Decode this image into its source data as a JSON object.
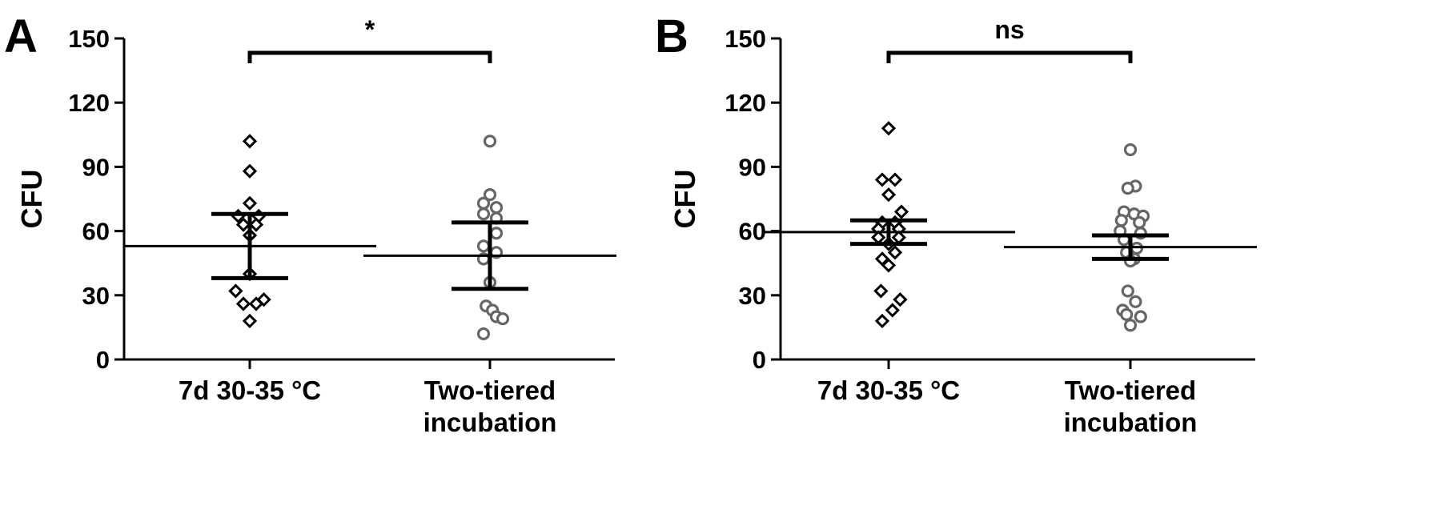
{
  "colors": {
    "series_7d": "#000000",
    "series_two_tiered": "#666666",
    "axis": "#000000",
    "background": "#ffffff"
  },
  "chart_data": [
    {
      "type": "scatter",
      "panel_label": "A",
      "ylabel": "CFU",
      "ylim": [
        0,
        150
      ],
      "yticks": [
        0,
        30,
        60,
        90,
        120,
        150
      ],
      "categories": [
        "7d 30-35 °C",
        "Two-tiered\nincubation"
      ],
      "significance": "*",
      "grid": false,
      "legend": "none",
      "series": [
        {
          "category": "7d 30-35 °C",
          "marker": "diamond",
          "color": "#000000",
          "points": [
            {
              "x": 0,
              "y": 102
            },
            {
              "x": 0,
              "y": 88
            },
            {
              "x": 0,
              "y": 73
            },
            {
              "x": -0.9,
              "y": 67
            },
            {
              "x": 0.7,
              "y": 67
            },
            {
              "x": -0.5,
              "y": 63
            },
            {
              "x": 0.5,
              "y": 63
            },
            {
              "x": 0,
              "y": 58
            },
            {
              "x": 0,
              "y": 40
            },
            {
              "x": -1.1,
              "y": 32
            },
            {
              "x": 1.1,
              "y": 28
            },
            {
              "x": -0.5,
              "y": 26
            },
            {
              "x": 0.5,
              "y": 26
            },
            {
              "x": 0,
              "y": 18
            }
          ],
          "mean": 53,
          "error": [
            38,
            68
          ]
        },
        {
          "category": "Two-tiered incubation",
          "marker": "circle",
          "color": "#666666",
          "points": [
            {
              "x": 0,
              "y": 102
            },
            {
              "x": 0,
              "y": 77
            },
            {
              "x": -0.5,
              "y": 73
            },
            {
              "x": 0.5,
              "y": 71
            },
            {
              "x": -0.5,
              "y": 68
            },
            {
              "x": 0.5,
              "y": 66
            },
            {
              "x": 0.5,
              "y": 59
            },
            {
              "x": -0.5,
              "y": 53
            },
            {
              "x": 0.5,
              "y": 50
            },
            {
              "x": -0.5,
              "y": 47
            },
            {
              "x": 0,
              "y": 36
            },
            {
              "x": -0.3,
              "y": 25
            },
            {
              "x": 0.2,
              "y": 23
            },
            {
              "x": 0.5,
              "y": 20
            },
            {
              "x": 1.0,
              "y": 19
            },
            {
              "x": -0.5,
              "y": 12
            }
          ],
          "mean": 48.5,
          "error": [
            33,
            64
          ]
        }
      ]
    },
    {
      "type": "scatter",
      "panel_label": "B",
      "ylabel": "CFU",
      "ylim": [
        0,
        150
      ],
      "yticks": [
        0,
        30,
        60,
        90,
        120,
        150
      ],
      "categories": [
        "7d 30-35 °C",
        "Two-tiered\nincubation"
      ],
      "significance": "ns",
      "grid": false,
      "legend": "none",
      "series": [
        {
          "category": "7d 30-35 °C",
          "marker": "diamond",
          "color": "#000000",
          "points": [
            {
              "x": 0,
              "y": 108
            },
            {
              "x": -0.5,
              "y": 84
            },
            {
              "x": 0.5,
              "y": 84
            },
            {
              "x": 0,
              "y": 77
            },
            {
              "x": 1.0,
              "y": 69
            },
            {
              "x": -0.5,
              "y": 64
            },
            {
              "x": 0.5,
              "y": 64
            },
            {
              "x": -0.8,
              "y": 61
            },
            {
              "x": 0.8,
              "y": 61
            },
            {
              "x": -0.8,
              "y": 57
            },
            {
              "x": 0.8,
              "y": 57
            },
            {
              "x": 0,
              "y": 54
            },
            {
              "x": 0.5,
              "y": 50
            },
            {
              "x": -0.5,
              "y": 47
            },
            {
              "x": 0,
              "y": 44
            },
            {
              "x": -0.6,
              "y": 32
            },
            {
              "x": 0.9,
              "y": 28
            },
            {
              "x": 0.3,
              "y": 23
            },
            {
              "x": -0.5,
              "y": 18
            }
          ],
          "mean": 59.5,
          "error": [
            54,
            65
          ]
        },
        {
          "category": "Two-tiered incubation",
          "marker": "circle",
          "color": "#666666",
          "points": [
            {
              "x": 0,
              "y": 98
            },
            {
              "x": 0.4,
              "y": 81
            },
            {
              "x": -0.2,
              "y": 80
            },
            {
              "x": -0.5,
              "y": 69
            },
            {
              "x": 0.3,
              "y": 68
            },
            {
              "x": 1.0,
              "y": 67
            },
            {
              "x": -0.7,
              "y": 65
            },
            {
              "x": 0.7,
              "y": 64
            },
            {
              "x": -0.8,
              "y": 60
            },
            {
              "x": 0.8,
              "y": 59
            },
            {
              "x": -0.5,
              "y": 56
            },
            {
              "x": 0.5,
              "y": 52
            },
            {
              "x": -0.3,
              "y": 50
            },
            {
              "x": 0.3,
              "y": 47
            },
            {
              "x": 0,
              "y": 46
            },
            {
              "x": -0.2,
              "y": 32
            },
            {
              "x": 0.4,
              "y": 27
            },
            {
              "x": -0.6,
              "y": 23
            },
            {
              "x": -0.3,
              "y": 21
            },
            {
              "x": 0.8,
              "y": 20
            },
            {
              "x": 0,
              "y": 16
            }
          ],
          "mean": 52.5,
          "error": [
            47,
            58
          ]
        }
      ]
    }
  ]
}
